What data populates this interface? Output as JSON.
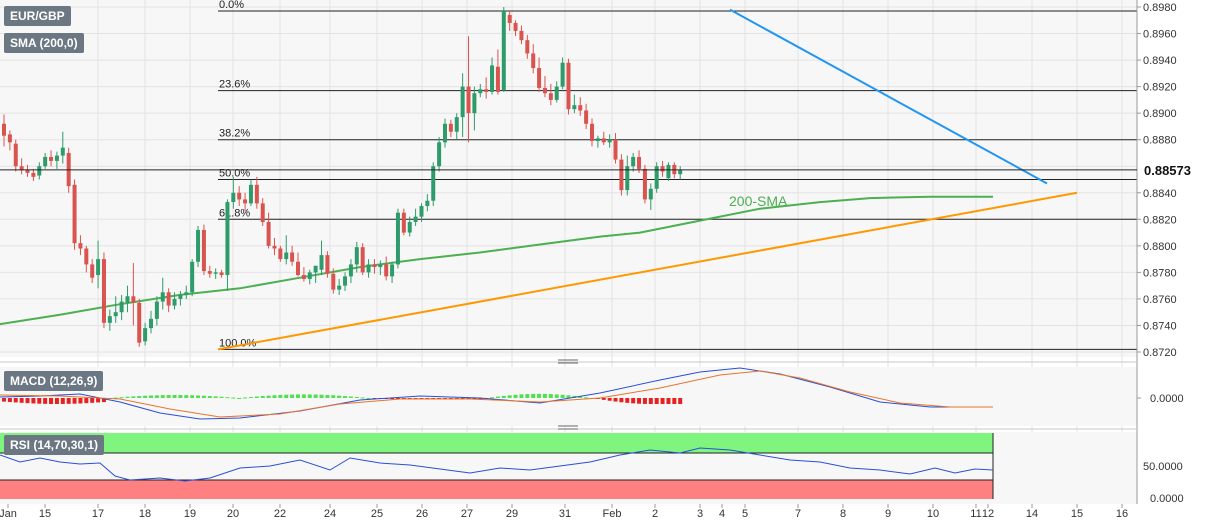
{
  "chart_data": {
    "type": "candlestick",
    "symbol": "EUR/GBP",
    "price_axis": {
      "ticks": [
        0.872,
        0.874,
        0.876,
        0.878,
        0.88,
        0.882,
        0.884,
        0.886,
        0.888,
        0.89,
        0.892,
        0.894,
        0.896,
        0.898
      ],
      "ylim": [
        0.872,
        0.8985
      ]
    },
    "time_axis": {
      "labels": [
        "Jan",
        "15",
        "17",
        "18",
        "19",
        "20",
        "22",
        "24",
        "25",
        "26",
        "27",
        "29",
        "31",
        "Feb",
        "2",
        "3",
        "4",
        "5",
        "7",
        "8",
        "9",
        "10",
        "11",
        "12",
        "14",
        "15",
        "16"
      ]
    },
    "current_price": "0.88573",
    "fibonacci": [
      {
        "label": "0.0%",
        "price": 0.8977
      },
      {
        "label": "23.6%",
        "price": 0.8917
      },
      {
        "label": "38.2%",
        "price": 0.888
      },
      {
        "label": "50.0%",
        "price": 0.885
      },
      {
        "label": "61.8%",
        "price": 0.882
      },
      {
        "label": "100.0%",
        "price": 0.8722
      }
    ],
    "candles": [
      [
        0.8892,
        0.8899,
        0.8875,
        0.8883
      ],
      [
        0.8884,
        0.8887,
        0.8872,
        0.8878
      ],
      [
        0.8877,
        0.888,
        0.8856,
        0.886
      ],
      [
        0.886,
        0.8866,
        0.8854,
        0.8857
      ],
      [
        0.8857,
        0.8861,
        0.8852,
        0.8855
      ],
      [
        0.8855,
        0.8858,
        0.8849,
        0.8852
      ],
      [
        0.8853,
        0.8863,
        0.885,
        0.886
      ],
      [
        0.886,
        0.887,
        0.8858,
        0.8867
      ],
      [
        0.8867,
        0.8872,
        0.886,
        0.8864
      ],
      [
        0.8864,
        0.8871,
        0.8858,
        0.8868
      ],
      [
        0.8868,
        0.8886,
        0.8862,
        0.8874
      ],
      [
        0.887,
        0.8874,
        0.884,
        0.8845
      ],
      [
        0.8846,
        0.885,
        0.8797,
        0.8802
      ],
      [
        0.8802,
        0.8808,
        0.8793,
        0.8798
      ],
      [
        0.8798,
        0.88,
        0.878,
        0.8786
      ],
      [
        0.8786,
        0.879,
        0.8772,
        0.8776
      ],
      [
        0.8778,
        0.8804,
        0.8768,
        0.879
      ],
      [
        0.879,
        0.8795,
        0.8738,
        0.8742
      ],
      [
        0.8742,
        0.8752,
        0.8736,
        0.8747
      ],
      [
        0.8747,
        0.8762,
        0.8742,
        0.875
      ],
      [
        0.875,
        0.8763,
        0.8744,
        0.8758
      ],
      [
        0.8757,
        0.877,
        0.875,
        0.8762
      ],
      [
        0.8762,
        0.8787,
        0.874,
        0.8757
      ],
      [
        0.8757,
        0.876,
        0.8724,
        0.8727
      ],
      [
        0.8728,
        0.8742,
        0.8725,
        0.8738
      ],
      [
        0.8738,
        0.8751,
        0.8734,
        0.8745
      ],
      [
        0.8745,
        0.8762,
        0.874,
        0.8758
      ],
      [
        0.8758,
        0.8776,
        0.8752,
        0.8765
      ],
      [
        0.8765,
        0.8768,
        0.875,
        0.8755
      ],
      [
        0.8755,
        0.8765,
        0.8752,
        0.876
      ],
      [
        0.876,
        0.8766,
        0.8755,
        0.8763
      ],
      [
        0.8763,
        0.877,
        0.876,
        0.8765
      ],
      [
        0.8765,
        0.879,
        0.8762,
        0.8788
      ],
      [
        0.8788,
        0.8815,
        0.8784,
        0.8812
      ],
      [
        0.8812,
        0.8816,
        0.8778,
        0.8781
      ],
      [
        0.8781,
        0.8785,
        0.8776,
        0.8779
      ],
      [
        0.8779,
        0.8783,
        0.8775,
        0.878
      ],
      [
        0.878,
        0.8782,
        0.8776,
        0.8778
      ],
      [
        0.8778,
        0.8835,
        0.8766,
        0.8833
      ],
      [
        0.8833,
        0.8852,
        0.8828,
        0.884
      ],
      [
        0.884,
        0.8845,
        0.883,
        0.8835
      ],
      [
        0.8835,
        0.884,
        0.8826,
        0.8832
      ],
      [
        0.8832,
        0.885,
        0.883,
        0.8846
      ],
      [
        0.8846,
        0.8852,
        0.8828,
        0.8832
      ],
      [
        0.8832,
        0.8836,
        0.8815,
        0.8818
      ],
      [
        0.8818,
        0.8825,
        0.8798,
        0.88
      ],
      [
        0.88,
        0.8806,
        0.8793,
        0.8798
      ],
      [
        0.8798,
        0.88,
        0.8788,
        0.879
      ],
      [
        0.879,
        0.8808,
        0.8786,
        0.8795
      ],
      [
        0.8795,
        0.88,
        0.8785,
        0.8788
      ],
      [
        0.8788,
        0.8795,
        0.8777,
        0.8778
      ],
      [
        0.8778,
        0.8784,
        0.8773,
        0.8775
      ],
      [
        0.8775,
        0.8782,
        0.8771,
        0.878
      ],
      [
        0.878,
        0.8785,
        0.8772,
        0.8785
      ],
      [
        0.8782,
        0.8804,
        0.8778,
        0.8793
      ],
      [
        0.8793,
        0.8796,
        0.8776,
        0.8779
      ],
      [
        0.8779,
        0.8783,
        0.8764,
        0.8767
      ],
      [
        0.8767,
        0.8775,
        0.8763,
        0.877
      ],
      [
        0.877,
        0.878,
        0.8766,
        0.8777
      ],
      [
        0.8777,
        0.879,
        0.8772,
        0.8786
      ],
      [
        0.8786,
        0.8803,
        0.878,
        0.8799
      ],
      [
        0.8799,
        0.8802,
        0.8778,
        0.878
      ],
      [
        0.878,
        0.879,
        0.8776,
        0.8786
      ],
      [
        0.8786,
        0.879,
        0.8779,
        0.8784
      ],
      [
        0.8784,
        0.8789,
        0.8778,
        0.8786
      ],
      [
        0.8786,
        0.8792,
        0.8774,
        0.8777
      ],
      [
        0.8777,
        0.8788,
        0.8772,
        0.8786
      ],
      [
        0.8786,
        0.8828,
        0.8783,
        0.8825
      ],
      [
        0.8825,
        0.8828,
        0.8808,
        0.881
      ],
      [
        0.881,
        0.8822,
        0.8807,
        0.8818
      ],
      [
        0.8818,
        0.8828,
        0.8815,
        0.8822
      ],
      [
        0.8822,
        0.8832,
        0.8818,
        0.883
      ],
      [
        0.883,
        0.8839,
        0.8826,
        0.8834
      ],
      [
        0.8834,
        0.8863,
        0.883,
        0.886
      ],
      [
        0.886,
        0.8882,
        0.8856,
        0.8878
      ],
      [
        0.8878,
        0.8896,
        0.8874,
        0.8892
      ],
      [
        0.8892,
        0.8895,
        0.8882,
        0.8886
      ],
      [
        0.8886,
        0.89,
        0.888,
        0.8897
      ],
      [
        0.8897,
        0.893,
        0.8882,
        0.892
      ],
      [
        0.892,
        0.8958,
        0.8878,
        0.89
      ],
      [
        0.89,
        0.892,
        0.8887,
        0.8915
      ],
      [
        0.8915,
        0.8922,
        0.8912,
        0.8918
      ],
      [
        0.8918,
        0.8927,
        0.8911,
        0.8916
      ],
      [
        0.8916,
        0.8942,
        0.8914,
        0.8936
      ],
      [
        0.8935,
        0.8948,
        0.8914,
        0.8916
      ],
      [
        0.8917,
        0.898,
        0.8916,
        0.8977
      ],
      [
        0.8974,
        0.8977,
        0.8962,
        0.8968
      ],
      [
        0.8968,
        0.897,
        0.8958,
        0.8962
      ],
      [
        0.8962,
        0.8966,
        0.8952,
        0.8955
      ],
      [
        0.8955,
        0.8959,
        0.8941,
        0.8945
      ],
      [
        0.8945,
        0.8952,
        0.893,
        0.8934
      ],
      [
        0.8934,
        0.8942,
        0.8916,
        0.8919
      ],
      [
        0.8919,
        0.8928,
        0.8912,
        0.8915
      ],
      [
        0.8915,
        0.8922,
        0.8906,
        0.891
      ],
      [
        0.891,
        0.8924,
        0.8908,
        0.892
      ],
      [
        0.892,
        0.8942,
        0.8918,
        0.8938
      ],
      [
        0.8938,
        0.8941,
        0.8899,
        0.8903
      ],
      [
        0.8903,
        0.8914,
        0.89,
        0.8906
      ],
      [
        0.8906,
        0.8912,
        0.8898,
        0.8902
      ],
      [
        0.8902,
        0.8907,
        0.8888,
        0.8892
      ],
      [
        0.8892,
        0.8896,
        0.8875,
        0.8879
      ],
      [
        0.8879,
        0.8883,
        0.8874,
        0.8881
      ],
      [
        0.8881,
        0.8886,
        0.8876,
        0.8878
      ],
      [
        0.8878,
        0.8884,
        0.8874,
        0.888
      ],
      [
        0.888,
        0.8885,
        0.8862,
        0.8865
      ],
      [
        0.8865,
        0.8869,
        0.8838,
        0.8842
      ],
      [
        0.8842,
        0.8868,
        0.8838,
        0.886
      ],
      [
        0.886,
        0.887,
        0.8856,
        0.8867
      ],
      [
        0.8867,
        0.8872,
        0.8855,
        0.8858
      ],
      [
        0.8858,
        0.8861,
        0.8832,
        0.8835
      ],
      [
        0.8835,
        0.8847,
        0.8827,
        0.8843
      ],
      [
        0.8843,
        0.8863,
        0.884,
        0.886
      ],
      [
        0.886,
        0.8864,
        0.8852,
        0.8856
      ],
      [
        0.8851,
        0.8863,
        0.8849,
        0.8861
      ],
      [
        0.8861,
        0.8863,
        0.8851,
        0.8854
      ],
      [
        0.8854,
        0.886,
        0.885,
        0.8857
      ]
    ],
    "indicators": {
      "sma": {
        "legend": "SMA (200,0)",
        "label": "200-SMA"
      },
      "macd": {
        "legend": "MACD (12,26,9)",
        "ticks": [
          "0.0000"
        ]
      },
      "rsi": {
        "legend": "RSI (14,70,30,1)",
        "ticks": [
          "50.0000",
          "0.0000"
        ]
      }
    },
    "colors": {
      "up": "#2e9b6a",
      "down": "#d9534f",
      "sma": "#4caf50",
      "support": "#ff9800",
      "resistance": "#2196f3",
      "macd_up": "#52e052",
      "macd_down": "#e82020",
      "rsi_line": "#2a4fd8",
      "rsi_over": "#7ff57f",
      "rsi_under": "#ff8080"
    }
  }
}
